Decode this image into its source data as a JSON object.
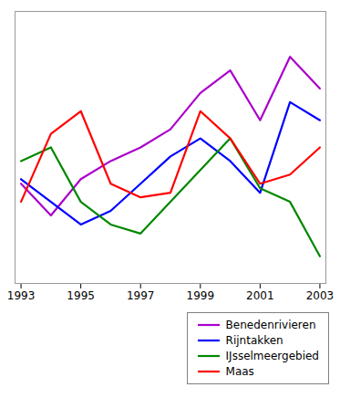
{
  "chart_data": {
    "type": "line",
    "x": [
      1993,
      1994,
      1995,
      1996,
      1997,
      1998,
      1999,
      2000,
      2001,
      2002,
      2003
    ],
    "series": [
      {
        "name": "Benedenrivieren",
        "color": "#aa00cc",
        "values": [
          62,
          55,
          63,
          67,
          70,
          74,
          82,
          87,
          76,
          90,
          83
        ]
      },
      {
        "name": "Rijntakken",
        "color": "#0000ff",
        "values": [
          63,
          58,
          53,
          56,
          62,
          68,
          72,
          67,
          60,
          80,
          76
        ]
      },
      {
        "name": "IJsselmeergebied",
        "color": "#008800",
        "values": [
          67,
          70,
          58,
          53,
          51,
          58,
          65,
          72,
          61,
          58,
          46
        ]
      },
      {
        "name": "Maas",
        "color": "#ff0000",
        "values": [
          58,
          73,
          78,
          62,
          59,
          60,
          78,
          72,
          62,
          64,
          70
        ]
      }
    ],
    "xlim": [
      1992.8,
      2003.2
    ],
    "ylim": [
      40,
      100
    ],
    "xticks": [
      1993,
      1995,
      1997,
      1999,
      2001,
      2003
    ],
    "tick_labels": "x",
    "grid": false,
    "legend": "lower right"
  }
}
